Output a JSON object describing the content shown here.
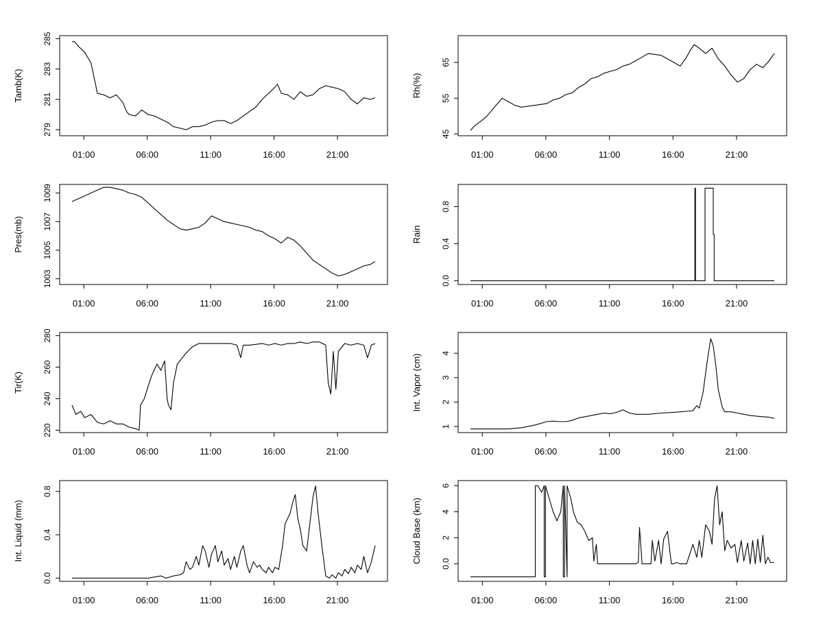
{
  "chart_data": [
    {
      "type": "line",
      "ylabel": "Tamb(K)",
      "yticks": [
        279,
        281,
        283,
        285
      ],
      "ylim": [
        278.6,
        285.2
      ],
      "x_tick_labels": [
        "01:00",
        "06:00",
        "11:00",
        "16:00",
        "21:00"
      ],
      "series": [
        {
          "x": [
            0.0,
            0.2,
            0.5,
            1.0,
            1.5,
            1.8,
            2.0,
            2.5,
            3.0,
            3.5,
            4.0,
            4.3,
            4.5,
            5.0,
            5.5,
            6.0,
            6.5,
            7.0,
            7.5,
            8.0,
            8.5,
            9.0,
            9.5,
            10.0,
            10.5,
            11.0,
            11.5,
            12.0,
            12.5,
            13.0,
            13.5,
            14.0,
            14.5,
            15.0,
            15.5,
            16.0,
            16.2,
            16.5,
            17.0,
            17.5,
            18.0,
            18.5,
            19.0,
            19.5,
            20.0,
            20.5,
            21.0,
            21.5,
            22.0,
            22.5,
            23.0,
            23.5,
            23.9
          ],
          "y": [
            284.8,
            284.8,
            284.5,
            284.1,
            283.4,
            282.2,
            281.4,
            281.3,
            281.1,
            281.3,
            280.8,
            280.2,
            280.0,
            279.9,
            280.3,
            280.0,
            279.9,
            279.7,
            279.5,
            279.2,
            279.1,
            279.0,
            279.2,
            279.2,
            279.3,
            279.5,
            279.6,
            279.6,
            279.4,
            279.6,
            279.9,
            280.2,
            280.5,
            281.0,
            281.4,
            281.8,
            282.0,
            281.4,
            281.3,
            281.0,
            281.5,
            281.2,
            281.3,
            281.7,
            281.9,
            281.8,
            281.7,
            281.5,
            281.0,
            280.7,
            281.1,
            281.0,
            281.1
          ]
        }
      ]
    },
    {
      "type": "line",
      "ylabel": "Rh(%)",
      "yticks": [
        45,
        55,
        65
      ],
      "ylim": [
        44.5,
        72.5
      ],
      "x_tick_labels": [
        "01:00",
        "06:00",
        "11:00",
        "16:00",
        "21:00"
      ],
      "series": [
        {
          "x": [
            0.0,
            0.3,
            0.8,
            1.3,
            2.0,
            2.5,
            3.0,
            3.5,
            4.0,
            5.0,
            6.0,
            6.5,
            7.0,
            7.5,
            8.0,
            8.5,
            9.0,
            9.5,
            10.0,
            10.5,
            11.0,
            11.5,
            12.0,
            12.5,
            13.0,
            13.5,
            14.0,
            15.0,
            15.5,
            16.0,
            16.5,
            17.0,
            17.3,
            17.6,
            18.0,
            18.5,
            19.0,
            19.5,
            20.0,
            20.5,
            21.0,
            21.5,
            22.0,
            22.5,
            23.0,
            23.5,
            23.9
          ],
          "y": [
            46.0,
            47.2,
            48.5,
            50.0,
            53.0,
            55.0,
            54.0,
            53.0,
            52.5,
            53.0,
            53.5,
            54.5,
            55.0,
            56.0,
            56.5,
            58.0,
            59.0,
            60.5,
            61.0,
            62.0,
            62.5,
            63.0,
            64.0,
            64.5,
            65.5,
            66.5,
            67.5,
            67.0,
            66.0,
            65.0,
            64.0,
            66.5,
            68.5,
            70.0,
            69.0,
            67.5,
            69.0,
            66.0,
            64.0,
            61.5,
            59.5,
            60.5,
            63.0,
            64.5,
            63.5,
            65.5,
            67.5
          ]
        }
      ]
    },
    {
      "type": "line",
      "ylabel": "Pres(mb)",
      "yticks": [
        1003,
        1005,
        1007,
        1009
      ],
      "ylim": [
        1002.6,
        1009.6
      ],
      "x_tick_labels": [
        "01:00",
        "06:00",
        "11:00",
        "16:00",
        "21:00"
      ],
      "series": [
        {
          "x": [
            0.0,
            0.5,
            1.0,
            1.5,
            2.0,
            2.5,
            3.0,
            3.5,
            4.0,
            4.5,
            5.0,
            5.5,
            6.0,
            6.5,
            7.0,
            7.5,
            8.0,
            8.5,
            9.0,
            9.5,
            10.0,
            10.5,
            11.0,
            11.5,
            12.0,
            12.5,
            13.0,
            13.5,
            14.0,
            14.5,
            15.0,
            15.5,
            16.0,
            16.5,
            17.0,
            17.5,
            18.0,
            18.5,
            19.0,
            19.5,
            20.0,
            20.5,
            21.0,
            21.5,
            22.0,
            22.5,
            23.0,
            23.5,
            23.9
          ],
          "y": [
            1008.4,
            1008.6,
            1008.8,
            1009.0,
            1009.2,
            1009.4,
            1009.4,
            1009.3,
            1009.2,
            1009.0,
            1008.9,
            1008.7,
            1008.3,
            1007.9,
            1007.5,
            1007.1,
            1006.8,
            1006.5,
            1006.4,
            1006.5,
            1006.6,
            1006.9,
            1007.4,
            1007.2,
            1007.0,
            1006.9,
            1006.8,
            1006.7,
            1006.6,
            1006.4,
            1006.3,
            1006.0,
            1005.8,
            1005.5,
            1005.9,
            1005.7,
            1005.3,
            1004.8,
            1004.3,
            1004.0,
            1003.7,
            1003.4,
            1003.2,
            1003.3,
            1003.5,
            1003.7,
            1003.9,
            1004.0,
            1004.2
          ]
        }
      ]
    },
    {
      "type": "line",
      "ylabel": "Rain",
      "yticks": [
        0.0,
        0.4,
        0.8
      ],
      "ylim": [
        -0.04,
        1.04
      ],
      "x_tick_labels": [
        "01:00",
        "06:00",
        "11:00",
        "16:00",
        "21:00"
      ],
      "series": [
        {
          "x": [
            0.0,
            17.65,
            17.65,
            17.7,
            17.7,
            18.45,
            18.45,
            19.1,
            19.1,
            19.17,
            19.17,
            23.9
          ],
          "y": [
            0,
            0,
            1,
            1,
            0,
            0,
            1,
            1,
            0.5,
            0.5,
            0,
            0
          ]
        }
      ]
    },
    {
      "type": "line",
      "ylabel": "Tir(K)",
      "yticks": [
        220,
        240,
        260,
        280
      ],
      "ylim": [
        218.5,
        282
      ],
      "x_tick_labels": [
        "01:00",
        "06:00",
        "11:00",
        "16:00",
        "21:00"
      ],
      "series": [
        {
          "x": [
            0.0,
            0.3,
            0.7,
            1.0,
            1.5,
            2.0,
            2.5,
            3.0,
            3.5,
            4.0,
            4.5,
            5.0,
            5.3,
            5.4,
            5.7,
            6.0,
            6.3,
            6.7,
            7.0,
            7.3,
            7.5,
            7.6,
            7.8,
            8.0,
            8.3,
            8.7,
            9.0,
            9.5,
            10.0,
            10.5,
            11.0,
            11.5,
            12.0,
            12.5,
            13.0,
            13.3,
            13.5,
            14.0,
            15.0,
            15.5,
            16.0,
            16.5,
            17.0,
            17.5,
            18.0,
            18.5,
            19.0,
            19.5,
            20.0,
            20.2,
            20.4,
            20.6,
            20.8,
            21.0,
            21.2,
            21.5,
            22.0,
            22.5,
            23.0,
            23.3,
            23.6,
            23.9
          ],
          "y": [
            236,
            230,
            232,
            228,
            230,
            225,
            224,
            226,
            224,
            224,
            222,
            221,
            220,
            236,
            240,
            248,
            255,
            262,
            258,
            264,
            240,
            236,
            233,
            250,
            262,
            266,
            269,
            273,
            275,
            275,
            275,
            275,
            275,
            275,
            274,
            266,
            274,
            274,
            275,
            274,
            275,
            274,
            275,
            275,
            276,
            275,
            276,
            276,
            274,
            250,
            243,
            270,
            246,
            270,
            272,
            275,
            274,
            275,
            274,
            266,
            274,
            275
          ]
        }
      ]
    },
    {
      "type": "line",
      "ylabel": "Int. Vapor (cm)",
      "yticks": [
        1,
        2,
        3,
        4
      ],
      "ylim": [
        0.75,
        4.85
      ],
      "x_tick_labels": [
        "01:00",
        "06:00",
        "11:00",
        "16:00",
        "21:00"
      ],
      "series": [
        {
          "x": [
            0.0,
            1.0,
            2.0,
            3.0,
            4.0,
            5.0,
            5.5,
            6.0,
            6.5,
            7.0,
            7.5,
            8.0,
            8.5,
            9.0,
            9.5,
            10.0,
            10.5,
            11.0,
            11.5,
            12.0,
            12.5,
            13.0,
            14.0,
            15.0,
            16.0,
            16.5,
            17.0,
            17.5,
            17.8,
            18.0,
            18.3,
            18.6,
            18.9,
            19.1,
            19.3,
            19.5,
            19.8,
            20.0,
            20.5,
            21.0,
            21.5,
            22.0,
            22.5,
            23.0,
            23.5,
            23.9
          ],
          "y": [
            0.9,
            0.9,
            0.9,
            0.9,
            0.95,
            1.05,
            1.12,
            1.2,
            1.22,
            1.2,
            1.2,
            1.25,
            1.35,
            1.4,
            1.45,
            1.5,
            1.55,
            1.52,
            1.58,
            1.68,
            1.55,
            1.5,
            1.5,
            1.55,
            1.58,
            1.6,
            1.62,
            1.65,
            1.85,
            1.75,
            2.4,
            3.6,
            4.6,
            4.3,
            3.5,
            2.5,
            1.8,
            1.6,
            1.6,
            1.55,
            1.5,
            1.45,
            1.42,
            1.4,
            1.38,
            1.33
          ]
        }
      ]
    },
    {
      "type": "line",
      "ylabel": "Int. Liquid (mm)",
      "yticks": [
        0.0,
        0.4,
        0.8
      ],
      "ylim": [
        -0.03,
        0.9
      ],
      "x_tick_labels": [
        "01:00",
        "06:00",
        "11:00",
        "16:00",
        "21:00"
      ],
      "series": [
        {
          "x": [
            0.0,
            1.0,
            2.0,
            3.0,
            4.0,
            5.0,
            6.0,
            7.0,
            7.4,
            8.0,
            8.5,
            8.8,
            9.0,
            9.3,
            9.5,
            9.8,
            10.0,
            10.3,
            10.5,
            10.8,
            11.0,
            11.3,
            11.5,
            11.8,
            12.0,
            12.3,
            12.5,
            12.8,
            13.0,
            13.3,
            13.5,
            13.8,
            14.0,
            14.3,
            14.6,
            14.8,
            15.0,
            15.3,
            15.5,
            15.8,
            16.0,
            16.3,
            16.6,
            16.8,
            17.0,
            17.2,
            17.4,
            17.6,
            17.8,
            18.0,
            18.2,
            18.5,
            18.8,
            19.0,
            19.2,
            19.4,
            19.7,
            20.0,
            20.3,
            20.5,
            20.8,
            21.0,
            21.3,
            21.5,
            21.8,
            22.0,
            22.3,
            22.5,
            22.8,
            23.0,
            23.3,
            23.6,
            23.9
          ],
          "y": [
            0,
            0,
            0,
            0,
            0,
            0,
            0,
            0.02,
            0.0,
            0.02,
            0.03,
            0.05,
            0.15,
            0.08,
            0.1,
            0.2,
            0.12,
            0.3,
            0.25,
            0.1,
            0.22,
            0.3,
            0.15,
            0.25,
            0.12,
            0.18,
            0.08,
            0.2,
            0.1,
            0.25,
            0.3,
            0.12,
            0.05,
            0.15,
            0.1,
            0.12,
            0.08,
            0.05,
            0.1,
            0.05,
            0.1,
            0.08,
            0.3,
            0.5,
            0.55,
            0.6,
            0.7,
            0.77,
            0.55,
            0.45,
            0.3,
            0.25,
            0.55,
            0.75,
            0.85,
            0.6,
            0.3,
            0.02,
            0.0,
            0.03,
            0.0,
            0.05,
            0.02,
            0.08,
            0.04,
            0.1,
            0.05,
            0.12,
            0.08,
            0.2,
            0.05,
            0.15,
            0.3
          ]
        }
      ]
    },
    {
      "type": "line",
      "ylabel": "Cloud Base (km)",
      "yticks": [
        0,
        2,
        4,
        6
      ],
      "ylim": [
        -1.35,
        6.4
      ],
      "x_tick_labels": [
        "01:00",
        "06:00",
        "11:00",
        "16:00",
        "21:00"
      ],
      "series": [
        {
          "x": [
            0.0,
            5.1,
            5.1,
            5.3,
            5.6,
            5.8,
            5.8,
            5.9,
            5.9,
            6.2,
            6.5,
            6.8,
            7.1,
            7.3,
            7.3,
            7.4,
            7.4,
            7.6,
            7.6,
            7.9,
            8.1,
            8.4,
            8.7,
            9.0,
            9.3,
            9.6,
            9.7,
            9.9,
            10.0,
            11.0,
            12.0,
            12.3,
            12.5,
            12.8,
            13.0,
            13.2,
            13.3,
            13.5,
            14.0,
            14.2,
            14.3,
            14.5,
            14.8,
            15.0,
            15.2,
            15.5,
            15.8,
            16.0,
            16.2,
            16.5,
            17.0,
            17.5,
            17.8,
            18.0,
            18.2,
            18.5,
            18.8,
            19.0,
            19.2,
            19.4,
            19.6,
            19.8,
            20.0,
            20.2,
            20.5,
            20.8,
            21.0,
            21.3,
            21.5,
            21.8,
            22.0,
            22.2,
            22.4,
            22.6,
            22.8,
            23.0,
            23.2,
            23.4,
            23.6,
            23.9
          ],
          "y": [
            -1,
            -1,
            6,
            6,
            5.5,
            6,
            -1,
            -1,
            6,
            5,
            4,
            3.3,
            4,
            6,
            -1,
            -1,
            6,
            -1,
            6,
            5,
            4,
            3.2,
            3.0,
            2.5,
            1.8,
            2.0,
            0.2,
            1.5,
            0,
            0,
            0,
            0,
            0,
            0,
            0,
            0.1,
            2.8,
            0,
            0,
            0,
            1.8,
            0.2,
            1.8,
            0,
            1.9,
            2.5,
            0,
            0,
            0.1,
            0,
            0,
            1.5,
            0.5,
            1.8,
            0.5,
            3.0,
            2.5,
            1.5,
            5.0,
            6.0,
            3.0,
            4.0,
            1.0,
            1.8,
            1.2,
            1.5,
            0.1,
            1.8,
            0.2,
            1.6,
            0,
            1.8,
            0,
            1.9,
            0.1,
            2.2,
            0,
            0.5,
            0.1,
            0.1
          ]
        }
      ]
    }
  ]
}
